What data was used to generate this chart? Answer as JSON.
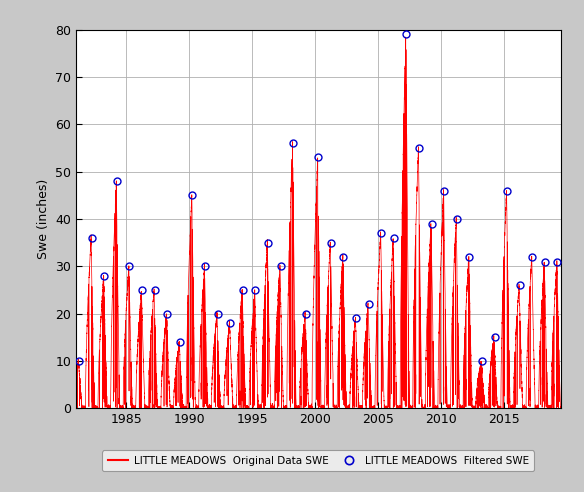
{
  "title": "",
  "ylabel": "Swe (inches)",
  "xlabel": "",
  "xlim": [
    1981.0,
    2019.5
  ],
  "ylim": [
    0,
    80
  ],
  "yticks": [
    0,
    10,
    20,
    30,
    40,
    50,
    60,
    70,
    80
  ],
  "xticks": [
    1985,
    1990,
    1995,
    2000,
    2005,
    2010,
    2015
  ],
  "line_color": "#ff0000",
  "marker_color": "#0000cc",
  "background_color": "#c8c8c8",
  "plot_bg_color": "#ffffff",
  "legend_line_label": "LITTLE MEADOWS  Original Data SWE",
  "legend_marker_label": "LITTLE MEADOWS  Filtered SWE",
  "filtered_years": [
    1981,
    1982,
    1983,
    1984,
    1985,
    1986,
    1987,
    1988,
    1989,
    1990,
    1991,
    1992,
    1993,
    1994,
    1995,
    1996,
    1997,
    1998,
    1999,
    2000,
    2001,
    2002,
    2003,
    2004,
    2005,
    2006,
    2007,
    2008,
    2009,
    2010,
    2011,
    2012,
    2013,
    2014,
    2015,
    2016,
    2017,
    2018,
    2019
  ],
  "filtered_values": [
    10,
    36,
    28,
    48,
    30,
    25,
    25,
    20,
    14,
    45,
    30,
    20,
    18,
    25,
    25,
    35,
    30,
    56,
    20,
    53,
    35,
    32,
    19,
    22,
    37,
    36,
    79,
    55,
    39,
    46,
    40,
    32,
    10,
    15,
    46,
    26,
    32,
    31,
    31
  ],
  "peak_x_offsets": [
    0.25,
    0.25,
    0.25,
    0.25,
    0.25,
    0.25,
    0.25,
    0.25,
    0.25,
    0.25,
    0.25,
    0.25,
    0.25,
    0.25,
    0.25,
    0.25,
    0.25,
    0.25,
    0.25,
    0.25,
    0.25,
    0.25,
    0.25,
    0.25,
    0.25,
    0.25,
    0.25,
    0.25,
    0.25,
    0.25,
    0.25,
    0.25,
    0.25,
    0.25,
    0.25,
    0.25,
    0.25,
    0.25,
    0.25
  ],
  "figsize": [
    5.84,
    4.92
  ],
  "dpi": 100
}
